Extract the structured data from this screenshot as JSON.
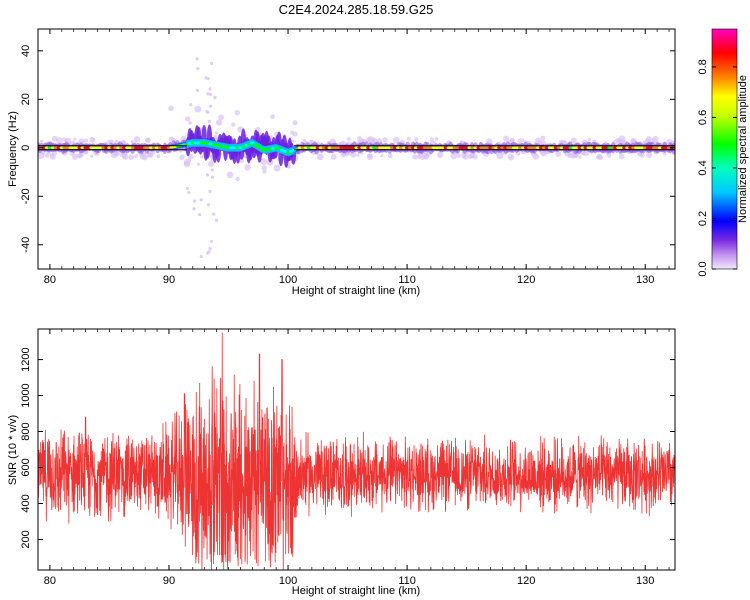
{
  "title": "C2E4.2024.285.18.59.G25",
  "chart_data": [
    {
      "type": "heatmap",
      "xlabel": "Height of straight line (km)",
      "ylabel": "Frequency (Hz)",
      "xlim": [
        79,
        132.5
      ],
      "ylim": [
        -50,
        49
      ],
      "xticks": [
        80,
        90,
        100,
        110,
        120,
        130
      ],
      "yticks": [
        -40,
        -20,
        0,
        20,
        40
      ],
      "grid": false,
      "colorbar": {
        "label": "Normalized spectral amplitude",
        "ticks": [
          0.0,
          0.2,
          0.4,
          0.6,
          0.8
        ],
        "range": [
          0,
          0.95
        ],
        "colormap": "rainbow",
        "colors": [
          "#e8d8f8",
          "#8a2be2",
          "#0000ff",
          "#00ffff",
          "#00ff00",
          "#ffff00",
          "#ff8000",
          "#ff0000",
          "#ff00c0"
        ]
      },
      "ridge": {
        "points": [
          [
            79,
            0
          ],
          [
            90,
            0
          ],
          [
            91,
            1
          ],
          [
            92,
            2
          ],
          [
            93,
            2
          ],
          [
            94,
            1
          ],
          [
            95,
            0
          ],
          [
            96,
            0
          ],
          [
            97,
            2
          ],
          [
            98,
            -1
          ],
          [
            99,
            0
          ],
          [
            100,
            -2
          ],
          [
            101,
            0
          ],
          [
            110,
            0
          ],
          [
            120,
            0
          ],
          [
            132.5,
            0
          ]
        ]
      }
    },
    {
      "type": "line",
      "xlabel": "Height of straight line (km)",
      "ylabel": "SNR (10 * v/v)",
      "xlim": [
        79,
        132.5
      ],
      "ylim": [
        30,
        1370
      ],
      "xticks": [
        80,
        90,
        100,
        110,
        120,
        130
      ],
      "yticks": [
        200,
        400,
        600,
        800,
        1000,
        1200
      ],
      "grid": false,
      "series": [
        {
          "color": "#ee3333",
          "baseline": 560,
          "envelope": [
            [
              79,
              280
            ],
            [
              85,
              300
            ],
            [
              88,
              260
            ],
            [
              90,
              330
            ],
            [
              91,
              420
            ],
            [
              92,
              500
            ],
            [
              93,
              600
            ],
            [
              94,
              680
            ],
            [
              95,
              600
            ],
            [
              96,
              560
            ],
            [
              97,
              580
            ],
            [
              98,
              620
            ],
            [
              99,
              700
            ],
            [
              100,
              560
            ],
            [
              101,
              260
            ],
            [
              110,
              230
            ],
            [
              120,
              230
            ],
            [
              132.5,
              240
            ]
          ],
          "peaks": [
            [
              83,
              880
            ],
            [
              91.3,
              1010
            ],
            [
              92.3,
              1020
            ],
            [
              94.5,
              1350
            ],
            [
              97.6,
              1230
            ],
            [
              99.5,
              1200
            ]
          ]
        }
      ]
    }
  ]
}
